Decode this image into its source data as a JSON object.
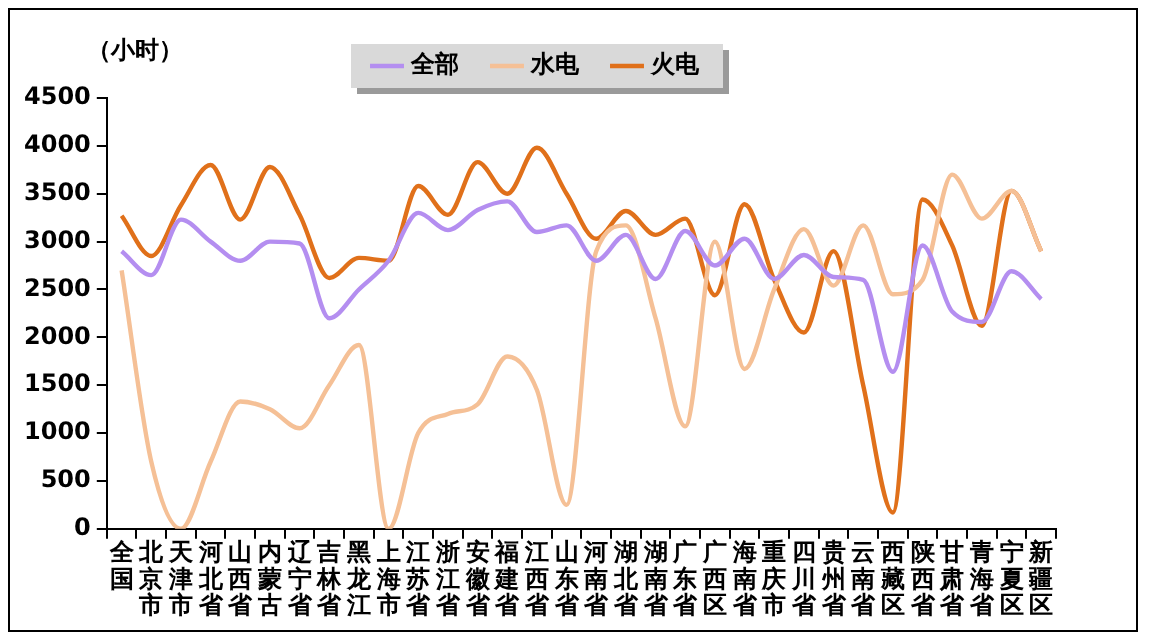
{
  "chart_data": {
    "type": "line",
    "ylabel": "（小时）",
    "legend": "top",
    "grid": false,
    "marker": "none",
    "categories": [
      "全国",
      "北京市",
      "天津市",
      "河北省",
      "山西省",
      "内蒙古",
      "辽宁省",
      "吉林省",
      "黑龙江",
      "上海市",
      "江苏省",
      "浙江省",
      "安徽省",
      "福建省",
      "江西省",
      "山东省",
      "河南省",
      "湖北省",
      "湖南省",
      "广东省",
      "广西区",
      "海南省",
      "重庆市",
      "四川省",
      "贵州省",
      "云南省",
      "西藏区",
      "陕西省",
      "甘肃省",
      "青海省",
      "宁夏区",
      "新疆区"
    ],
    "ylim": [
      0,
      4500
    ],
    "yticks": [
      0,
      500,
      1000,
      1500,
      2000,
      2500,
      3000,
      3500,
      4000,
      4500
    ],
    "series": [
      {
        "name": "全部",
        "color": "#b48ef0",
        "values": [
          2900,
          2650,
          3230,
          3000,
          2800,
          3000,
          2980,
          2200,
          2500,
          2800,
          3300,
          3120,
          3330,
          3420,
          3100,
          3170,
          2800,
          3070,
          2610,
          3110,
          2750,
          3030,
          2610,
          2860,
          2630,
          2600,
          1640,
          2960,
          2270,
          2160,
          2690,
          2400
        ]
      },
      {
        "name": "水电",
        "color": "#f5c096",
        "values": [
          2700,
          700,
          0,
          700,
          1330,
          1250,
          1050,
          1500,
          1920,
          0,
          1000,
          1200,
          1300,
          1800,
          1450,
          250,
          2900,
          3170,
          2200,
          1070,
          3000,
          1670,
          2500,
          3130,
          2540,
          3170,
          2450,
          2600,
          3700,
          3240,
          3530,
          2900
        ]
      },
      {
        "name": "火电",
        "color": "#e0701a",
        "values": [
          3270,
          2850,
          3380,
          3800,
          3230,
          3780,
          3280,
          2620,
          2830,
          2800,
          3580,
          3280,
          3830,
          3500,
          3980,
          3500,
          3030,
          3320,
          3070,
          3240,
          2440,
          3390,
          2600,
          2050,
          2900,
          1500,
          170,
          3440,
          2960,
          2120,
          3530,
          2900
        ]
      }
    ]
  }
}
